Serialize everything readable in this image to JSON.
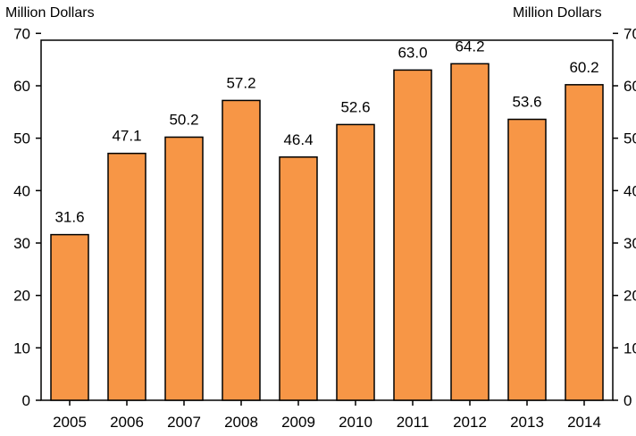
{
  "chart_data": {
    "type": "bar",
    "categories": [
      "2005",
      "2006",
      "2007",
      "2008",
      "2009",
      "2010",
      "2011",
      "2012",
      "2013",
      "2014"
    ],
    "values": [
      31.6,
      47.1,
      50.2,
      57.2,
      46.4,
      52.6,
      63.0,
      64.2,
      53.6,
      60.2
    ],
    "value_labels": [
      "31.6",
      "47.1",
      "50.2",
      "57.2",
      "46.4",
      "52.6",
      "63.0",
      "64.2",
      "53.6",
      "60.2"
    ],
    "y_unit_left": "Million Dollars",
    "y_unit_right": "Million Dollars",
    "ylim": [
      0,
      70
    ],
    "yticks": [
      0,
      10,
      20,
      30,
      40,
      50,
      60,
      70
    ],
    "grid": false,
    "bar_color": "#f79646",
    "bar_edge_color": "#000000"
  }
}
